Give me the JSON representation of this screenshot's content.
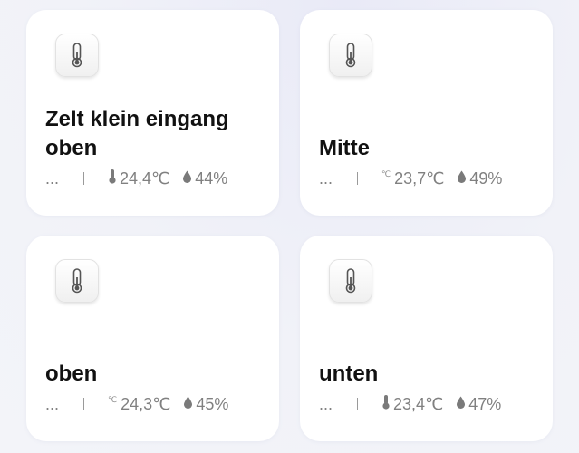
{
  "cards": [
    {
      "name": "Zelt klein eingang oben",
      "status": "...",
      "temp_icon": "thermometer-icon",
      "temperature": "24,4℃",
      "humidity": "44%"
    },
    {
      "name": "Mitte",
      "status": "...",
      "temp_icon": "celsius-icon",
      "temperature": "23,7℃",
      "humidity": "49%"
    },
    {
      "name": "oben",
      "status": "...",
      "temp_icon": "celsius-icon",
      "temperature": "24,3℃",
      "humidity": "45%"
    },
    {
      "name": "unten",
      "status": "...",
      "temp_icon": "thermometer-icon",
      "temperature": "23,4℃",
      "humidity": "47%"
    }
  ],
  "colors": {
    "background": "#eef0f8",
    "card": "#ffffff",
    "title": "#111111",
    "muted": "#808080"
  },
  "symbols": {
    "celsius": "℃"
  }
}
